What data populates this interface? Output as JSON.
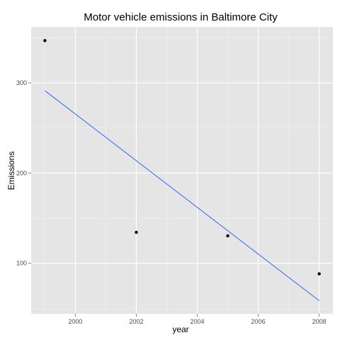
{
  "chart_data": {
    "type": "scatter",
    "title": "Motor vehicle emissions in Baltimore City",
    "xlabel": "year",
    "ylabel": "Emissions",
    "xlim": [
      1998.55,
      2008.45
    ],
    "ylim": [
      44,
      362
    ],
    "x_ticks": [
      2000,
      2002,
      2004,
      2006,
      2008
    ],
    "y_ticks": [
      100,
      200,
      300
    ],
    "grid": true,
    "legend": "none",
    "points": [
      {
        "x": 1999,
        "y": 346.8
      },
      {
        "x": 2002,
        "y": 134.3
      },
      {
        "x": 2005,
        "y": 130.4
      },
      {
        "x": 2008,
        "y": 88.3
      }
    ],
    "trend_line": {
      "type": "linear",
      "x": [
        1999,
        2008
      ],
      "y": [
        291.3,
        58.5
      ]
    },
    "colors": {
      "panel": "#e5e5e5",
      "grid": "#ffffff",
      "points": "#000000",
      "trend": "#3366ff"
    }
  }
}
